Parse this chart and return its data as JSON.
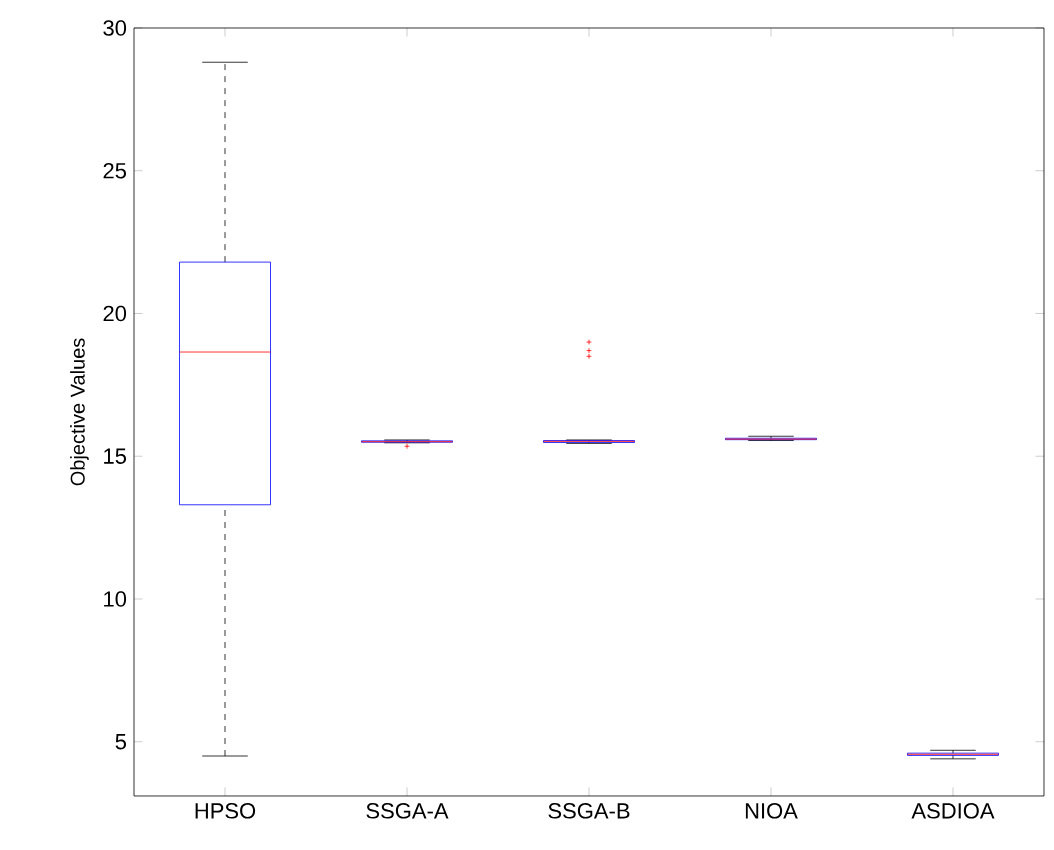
{
  "chart_data": {
    "type": "box",
    "ylabel": "Objective Values",
    "categories": [
      "HPSO",
      "SSGA-A",
      "SSGA-B",
      "NIOA",
      "ASDIOA"
    ],
    "series": [
      {
        "color": "#0000ff",
        "boxes": [
          {
            "low": 4.5,
            "q1": 13.3,
            "median": 18.65,
            "q3": 21.8,
            "high": 28.8
          },
          {
            "low": 15.47,
            "q1": 15.49,
            "median": 15.51,
            "q3": 15.54,
            "high": 15.57,
            "outliers": [
              15.35
            ]
          },
          {
            "low": 15.45,
            "q1": 15.48,
            "median": 15.52,
            "q3": 15.55,
            "high": 15.57,
            "outliers": [
              18.5,
              18.7,
              19.0
            ]
          },
          {
            "low": 15.55,
            "q1": 15.58,
            "median": 15.6,
            "q3": 15.63,
            "high": 15.7
          },
          {
            "low": 4.4,
            "q1": 4.52,
            "median": 4.56,
            "q3": 4.6,
            "high": 4.7
          }
        ]
      }
    ],
    "ylim": [
      3.1,
      30
    ],
    "yticks": [
      5,
      10,
      15,
      20,
      25,
      30
    ],
    "grid": false
  }
}
